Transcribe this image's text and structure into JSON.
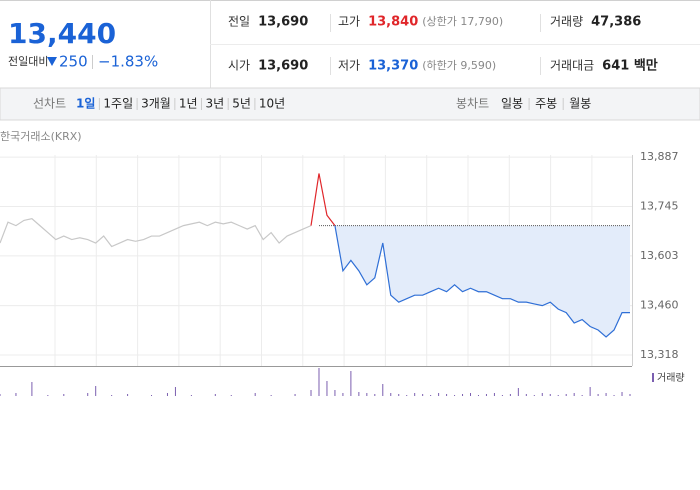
{
  "quote": {
    "price": "13,440",
    "change_label": "전일대비",
    "change": "250",
    "change_rate": "−1.83%"
  },
  "stats": [
    {
      "label": "전일",
      "value": "13,690"
    },
    {
      "label": "고가",
      "value": "13,840",
      "note": "(상한가 17,790)"
    },
    {
      "label": "거래량",
      "value": "47,386"
    },
    {
      "label": "시가",
      "value": "13,690"
    },
    {
      "label": "저가",
      "value": "13,370",
      "note": "(하한가 9,590)"
    },
    {
      "label": "거래대금",
      "value": "641 백만"
    }
  ],
  "tabs": {
    "line_label": "선차트",
    "line_periods": [
      "1일",
      "1주일",
      "3개월",
      "1년",
      "3년",
      "5년",
      "10년"
    ],
    "candle_label": "봉차트",
    "candle_periods": [
      "일봉",
      "주봉",
      "월봉"
    ]
  },
  "source": "한국거래소(KRX)",
  "chart_data": {
    "type": "line",
    "x": [
      0,
      1,
      2,
      3,
      4,
      5,
      6,
      7,
      8,
      9,
      10,
      11,
      12,
      13,
      14,
      15,
      16,
      17,
      18,
      19,
      20,
      21,
      22,
      23,
      24,
      25,
      26,
      27,
      28,
      29,
      30,
      31,
      32,
      33,
      34,
      35,
      36,
      37,
      38,
      39,
      40,
      41,
      42,
      43,
      44,
      45,
      46,
      47,
      48,
      49,
      50,
      51,
      52,
      53,
      54,
      55,
      56,
      57,
      58,
      59,
      60,
      61,
      62,
      63,
      64,
      65,
      66,
      67,
      68,
      69,
      70,
      71,
      72,
      73,
      74,
      75,
      76,
      77,
      78,
      79
    ],
    "xlim": [
      0,
      79
    ],
    "ylim": [
      13298,
      13893
    ],
    "yticks": [
      {
        "value": 13887,
        "label": "13,887"
      },
      {
        "value": 13745,
        "label": "13,745"
      },
      {
        "value": 13603,
        "label": "13,603"
      },
      {
        "value": 13460,
        "label": "13,460"
      },
      {
        "value": 13318,
        "label": "13,318"
      }
    ],
    "grid": true,
    "reference": 13690,
    "area_color": "#e3ecfa",
    "series": [
      {
        "color": "#c8c8c8",
        "values": [
          13640,
          13700,
          13690,
          13705,
          13710,
          13690,
          13670,
          13650,
          13660,
          13650,
          13655,
          13650,
          13640,
          13660,
          13630,
          13640,
          13650,
          13645,
          13650,
          13660,
          13660,
          13670,
          13680,
          13690,
          13695,
          13700,
          13690,
          13700,
          13695,
          13700,
          13690,
          13680,
          13690,
          13650,
          13670,
          13640,
          13660,
          13670,
          13680,
          13690,
          null,
          null,
          null,
          null,
          null,
          null,
          null,
          null,
          null,
          null,
          null,
          null,
          null,
          null,
          null,
          null,
          null,
          null,
          null,
          null,
          null,
          null,
          null,
          null,
          null,
          null,
          null,
          null,
          null,
          null,
          null,
          null,
          null,
          null,
          null,
          null,
          null,
          null,
          null,
          null
        ]
      },
      {
        "color": "#e0262a",
        "values": [
          null,
          null,
          null,
          null,
          null,
          null,
          null,
          null,
          null,
          null,
          null,
          null,
          null,
          null,
          null,
          null,
          null,
          null,
          null,
          null,
          null,
          null,
          null,
          null,
          null,
          null,
          null,
          null,
          null,
          null,
          null,
          null,
          null,
          null,
          null,
          null,
          null,
          null,
          null,
          13690,
          13840,
          13720,
          13690,
          null,
          null,
          null,
          null,
          null,
          null,
          null,
          null,
          null,
          null,
          null,
          null,
          null,
          null,
          null,
          null,
          null,
          null,
          null,
          null,
          null,
          null,
          null,
          null,
          null,
          null,
          null,
          null,
          null,
          null,
          null,
          null,
          null,
          null,
          null,
          null,
          null
        ]
      },
      {
        "color": "#2f6fd6",
        "fill": true,
        "values": [
          null,
          null,
          null,
          null,
          null,
          null,
          null,
          null,
          null,
          null,
          null,
          null,
          null,
          null,
          null,
          null,
          null,
          null,
          null,
          null,
          null,
          null,
          null,
          null,
          null,
          null,
          null,
          null,
          null,
          null,
          null,
          null,
          null,
          null,
          null,
          null,
          null,
          null,
          null,
          null,
          null,
          null,
          13690,
          13560,
          13590,
          13560,
          13520,
          13540,
          13640,
          13490,
          13470,
          13480,
          13490,
          13490,
          13500,
          13510,
          13500,
          13520,
          13500,
          13510,
          13500,
          13500,
          13490,
          13480,
          13480,
          13470,
          13470,
          13465,
          13460,
          13470,
          13450,
          13440,
          13410,
          13420,
          13400,
          13390,
          13370,
          13390,
          13440,
          13440
        ]
      }
    ],
    "volume": {
      "label": "거래량",
      "color": "#7b5fb0",
      "ylim": [
        0,
        3000
      ],
      "values": [
        200,
        0,
        300,
        0,
        1400,
        0,
        100,
        0,
        200,
        0,
        0,
        300,
        1000,
        0,
        100,
        0,
        200,
        0,
        0,
        100,
        0,
        300,
        900,
        0,
        100,
        0,
        0,
        200,
        0,
        100,
        0,
        0,
        300,
        0,
        100,
        0,
        0,
        200,
        0,
        600,
        2800,
        1500,
        600,
        300,
        2500,
        400,
        300,
        200,
        1200,
        300,
        200,
        100,
        300,
        200,
        100,
        300,
        200,
        100,
        200,
        300,
        100,
        200,
        300,
        100,
        200,
        800,
        200,
        100,
        300,
        200,
        100,
        200,
        300,
        100,
        900,
        200,
        300,
        100,
        400,
        200
      ]
    }
  }
}
